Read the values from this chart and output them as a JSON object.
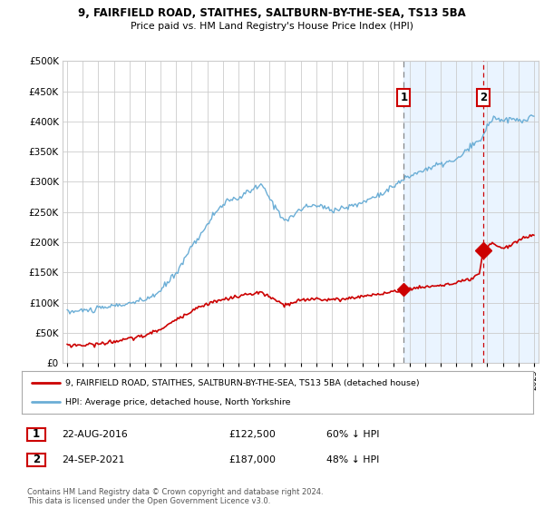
{
  "title1": "9, FAIRFIELD ROAD, STAITHES, SALTBURN-BY-THE-SEA, TS13 5BA",
  "title2": "Price paid vs. HM Land Registry's House Price Index (HPI)",
  "legend_line1": "9, FAIRFIELD ROAD, STAITHES, SALTBURN-BY-THE-SEA, TS13 5BA (detached house)",
  "legend_line2": "HPI: Average price, detached house, North Yorkshire",
  "annotation1_label": "1",
  "annotation1_date": "22-AUG-2016",
  "annotation1_price": "£122,500",
  "annotation1_hpi": "60% ↓ HPI",
  "annotation2_label": "2",
  "annotation2_date": "24-SEP-2021",
  "annotation2_price": "£187,000",
  "annotation2_hpi": "48% ↓ HPI",
  "footer": "Contains HM Land Registry data © Crown copyright and database right 2024.\nThis data is licensed under the Open Government Licence v3.0.",
  "ylim": [
    0,
    500000
  ],
  "yticks": [
    0,
    50000,
    100000,
    150000,
    200000,
    250000,
    300000,
    350000,
    400000,
    450000,
    500000
  ],
  "hpi_color": "#6baed6",
  "price_color": "#cc0000",
  "marker_color": "#cc0000",
  "vline1_color": "#888888",
  "vline2_color": "#cc0000",
  "bg_shade_color": "#ddeeff",
  "annotation_box_color": "#cc0000",
  "grid_color": "#cccccc",
  "start_year": 1995,
  "end_year": 2025,
  "purchase1_year": 2016.64,
  "purchase1_value": 122500,
  "purchase2_year": 2021.73,
  "purchase2_value": 187000
}
